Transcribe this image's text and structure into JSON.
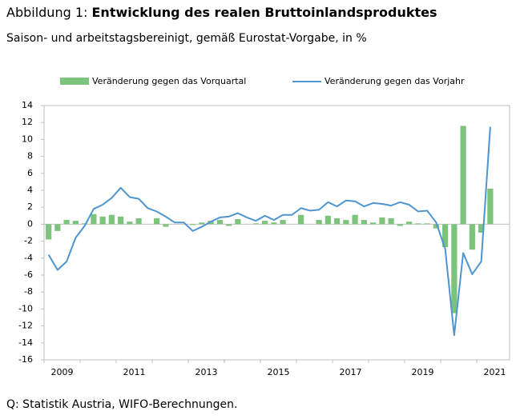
{
  "chart_data": {
    "type": "bar_line",
    "figure_label": "Abbildung 1:",
    "title": "Entwicklung des realen Bruttoinlandsproduktes",
    "subtitle": "Saison- und arbeitstagsbereinigt, gemäß Eurostat-Vorgabe, in %",
    "source": "Q: Statistik Austria, WIFO-Berechnungen.",
    "categories": [
      "2009",
      null,
      null,
      null,
      null,
      null,
      null,
      null,
      "2011",
      null,
      null,
      null,
      null,
      null,
      null,
      null,
      "2013",
      null,
      null,
      null,
      null,
      null,
      null,
      null,
      "2015",
      null,
      null,
      null,
      null,
      null,
      null,
      null,
      "2017",
      null,
      null,
      null,
      null,
      null,
      null,
      null,
      "2019",
      null,
      null,
      null,
      null,
      null,
      null,
      null,
      "2021",
      null
    ],
    "series": [
      {
        "name": "Veränderung gegen das Vorquartal",
        "type": "bar",
        "color": "#7cc47c",
        "values": [
          -1.8,
          -0.8,
          0.5,
          0.4,
          0.1,
          1.2,
          0.9,
          1.1,
          0.9,
          0.3,
          0.7,
          0.0,
          0.7,
          -0.3,
          0.0,
          0.0,
          -0.1,
          0.2,
          0.4,
          0.5,
          -0.2,
          0.6,
          0.0,
          0.1,
          0.4,
          0.2,
          0.5,
          0.0,
          1.1,
          0.0,
          0.5,
          1.0,
          0.7,
          0.5,
          1.1,
          0.5,
          0.2,
          0.8,
          0.7,
          -0.2,
          0.3,
          0.1,
          0.1,
          -0.5,
          -2.7,
          -10.5,
          11.6,
          -3.0,
          -1.0,
          4.2
        ]
      },
      {
        "name": "Veränderung gegen das Vorjahr",
        "type": "line",
        "color": "#4f95d0",
        "values": [
          -3.6,
          -5.4,
          -4.4,
          -1.6,
          -0.2,
          1.8,
          2.3,
          3.1,
          4.3,
          3.2,
          3.0,
          1.9,
          1.5,
          0.9,
          0.2,
          0.2,
          -0.8,
          -0.3,
          0.3,
          0.8,
          0.9,
          1.3,
          0.8,
          0.4,
          1.0,
          0.5,
          1.1,
          1.1,
          1.9,
          1.6,
          1.7,
          2.6,
          2.1,
          2.8,
          2.7,
          2.1,
          2.5,
          2.4,
          2.2,
          2.6,
          2.3,
          1.5,
          1.6,
          0.2,
          -2.9,
          -13.1,
          -3.4,
          -5.9,
          -4.4,
          11.5
        ]
      }
    ],
    "ylim": [
      -16,
      14
    ],
    "yticks": [
      -16,
      -14,
      -12,
      -10,
      -8,
      -6,
      -4,
      -2,
      0,
      2,
      4,
      6,
      8,
      10,
      12,
      14
    ],
    "grid": false,
    "legend": "top"
  }
}
